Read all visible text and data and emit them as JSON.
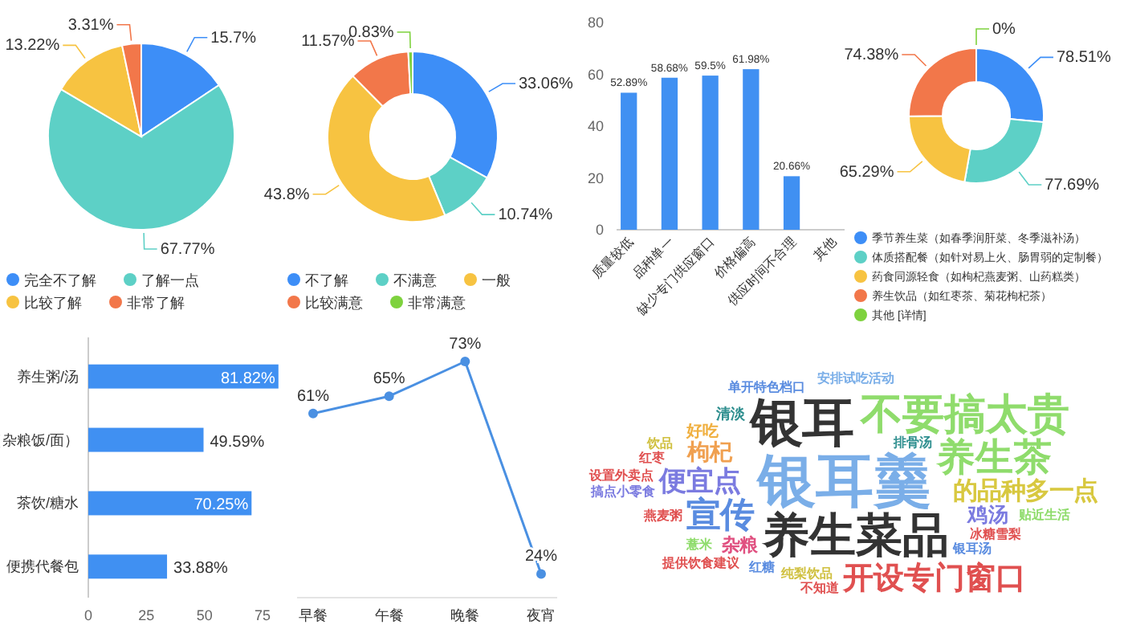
{
  "chart_data": [
    {
      "type": "pie",
      "categories": [
        "完全不了解",
        "了解一点",
        "比较了解",
        "非常了解"
      ],
      "values": [
        15.7,
        67.77,
        13.22,
        3.31
      ],
      "colors": [
        "#3d8ef7",
        "#5dd0c6",
        "#f7c341",
        "#f2774a"
      ],
      "value_labels": [
        "15.7%",
        "67.77%",
        "13.22%",
        "3.31%"
      ],
      "legend": "bottom"
    },
    {
      "type": "donut",
      "categories": [
        "不了解",
        "不满意",
        "一般",
        "比较满意",
        "非常满意"
      ],
      "values": [
        33.06,
        10.74,
        43.8,
        11.57,
        0.83
      ],
      "colors": [
        "#3d8ef7",
        "#5dd0c6",
        "#f7c341",
        "#f2774a",
        "#7ed23e"
      ],
      "value_labels": [
        "33.06%",
        "10.74%",
        "43.8%",
        "11.57%",
        "0.83%"
      ],
      "legend": "bottom"
    },
    {
      "type": "bar",
      "categories": [
        "质量较低",
        "品种单一",
        "缺少专门供应窗口",
        "价格偏高",
        "供应时间不合理",
        "其他"
      ],
      "values": [
        52.89,
        58.68,
        59.5,
        61.98,
        20.66,
        null
      ],
      "color": "#4090f2",
      "value_labels": [
        "52.89%",
        "58.68%",
        "59.5%",
        "61.98%",
        "20.66%",
        null
      ],
      "ylim": [
        0,
        80
      ],
      "yticks": [
        0,
        20,
        40,
        60,
        80
      ]
    },
    {
      "type": "donut",
      "categories": [
        "季节养生菜（如春季润肝菜、冬季滋补汤）",
        "体质搭配餐（如针对易上火、肠胃弱的定制餐）",
        "药食同源轻食（如枸杞燕麦粥、山药糕类）",
        "养生饮品（如红枣茶、菊花枸杞茶）",
        "其他 [详情]"
      ],
      "values": [
        78.51,
        77.69,
        65.29,
        74.38,
        0
      ],
      "colors": [
        "#3d8ef7",
        "#5dd0c6",
        "#f7c341",
        "#f2774a",
        "#7ed23e"
      ],
      "value_labels": [
        "78.51%",
        "77.69%",
        "65.29%",
        "74.38%",
        "0%"
      ],
      "legend": "bottom"
    },
    {
      "type": "bar",
      "orientation": "horizontal",
      "categories": [
        "养生粥/汤",
        "（杂粮饭/面）",
        "茶饮/糖水",
        "便携代餐包"
      ],
      "values": [
        81.82,
        49.59,
        70.25,
        33.88
      ],
      "color": "#4090f2",
      "value_labels": [
        "81.82%",
        "49.59%",
        "70.25%",
        "33.88%"
      ],
      "xlim": [
        0,
        85
      ],
      "xticks": [
        0,
        25,
        50,
        75
      ]
    },
    {
      "type": "line",
      "categories": [
        "早餐",
        "午餐",
        "晚餐",
        "夜宵"
      ],
      "series": [
        {
          "color": "#4a90e2",
          "values": [
            61,
            65,
            73,
            24
          ],
          "value_labels": [
            "61%",
            "65%",
            "73%",
            "24%"
          ]
        }
      ],
      "marker": "circle",
      "tick_labels": "x"
    },
    {
      "type": "other",
      "categories": [
        "银耳羹",
        "银耳",
        "养生菜品",
        "不要搞太贵",
        "养生茶",
        "宣传",
        "开设专门窗口",
        "便宜点",
        "的品种多一点",
        "枸杞",
        "鸡汤",
        "杂粮",
        "好吃",
        "清淡",
        "冰糖雪梨",
        "纯梨饮品",
        "排骨汤",
        "银耳汤",
        "红糖",
        "薏米",
        "燕麦粥",
        "红枣",
        "饮品",
        "单开特色档口",
        "安排试吃活动",
        "贴近生活",
        "不知道",
        "提供饮食建议",
        "搞点小零食",
        "设置外卖点"
      ],
      "colors": [
        "#7aaee8",
        "#333333",
        "#333333",
        "#8fdc6c",
        "#8fdc6c",
        "#5a8ce0",
        "#e05050",
        "#7b7be0",
        "#d8c840",
        "#f0a050",
        "#7b7be0",
        "#e05080",
        "#f0b040",
        "#2f8f8f",
        "#e05050",
        "#d0c040",
        "#2f8f8f",
        "#5a8ce0",
        "#5a8ce0",
        "#8fdc6c",
        "#e05050",
        "#e05050",
        "#d0c040",
        "#5a8ce0",
        "#7aaee8",
        "#8fdc6c",
        "#e05050",
        "#e05050",
        "#7b7be0",
        "#e05050"
      ]
    }
  ]
}
